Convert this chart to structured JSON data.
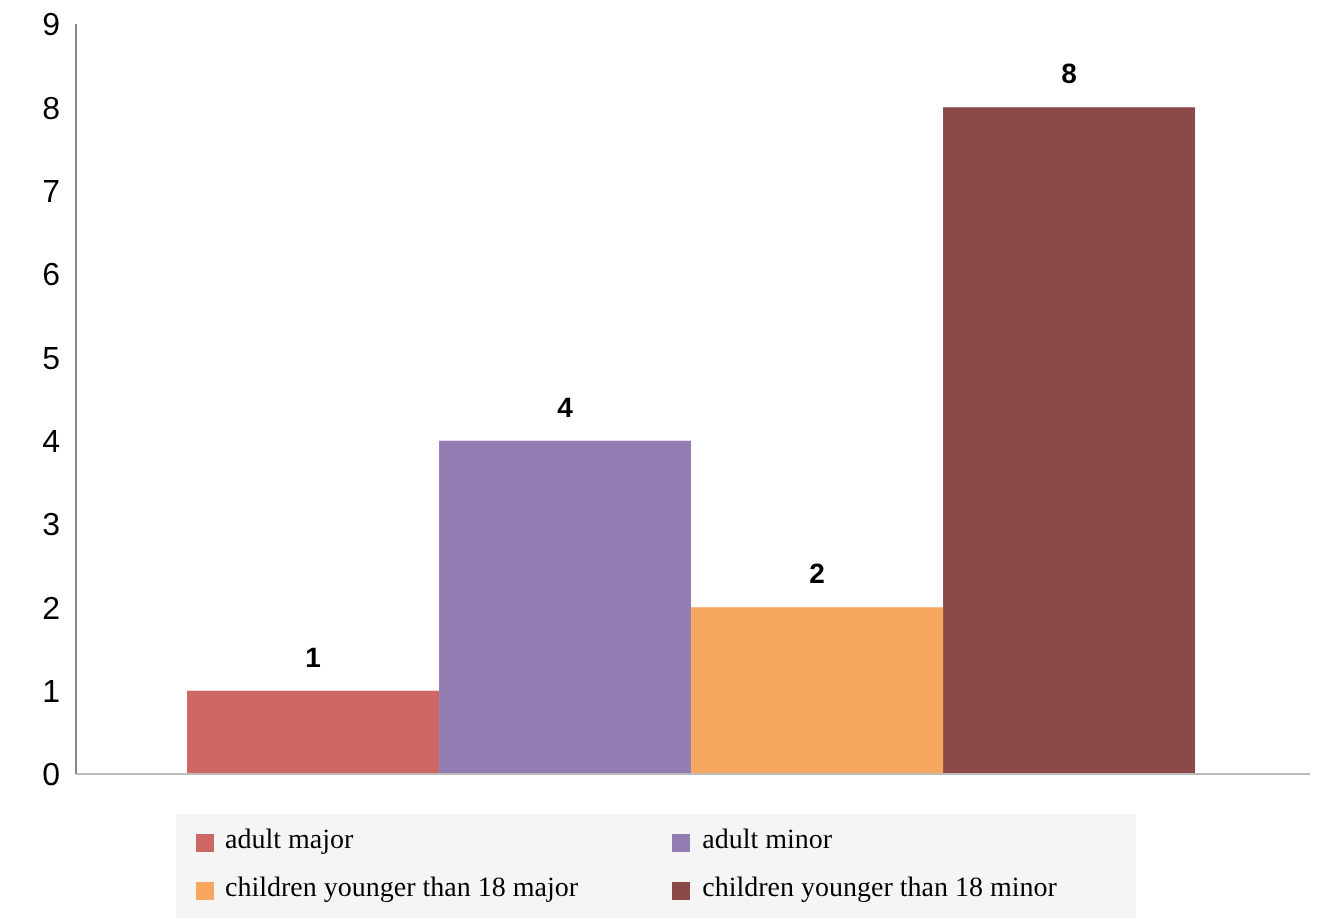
{
  "chart_data": {
    "type": "bar",
    "categories": [
      null
    ],
    "series": [
      {
        "name": "adult major",
        "color": "#cd6763",
        "values": [
          1
        ]
      },
      {
        "name": "adult minor",
        "color": "#937db2",
        "values": [
          4
        ]
      },
      {
        "name": "children younger than 18 major",
        "color": "#f7a660",
        "values": [
          2
        ]
      },
      {
        "name": "children younger than 18 minor",
        "color": "#8b4a48",
        "values": [
          8
        ]
      }
    ],
    "ylim": [
      0,
      9
    ],
    "yticks": [
      0,
      1,
      2,
      3,
      4,
      5,
      6,
      7,
      8,
      9
    ],
    "grid": false,
    "legend": "bottom",
    "data_labels": true
  }
}
